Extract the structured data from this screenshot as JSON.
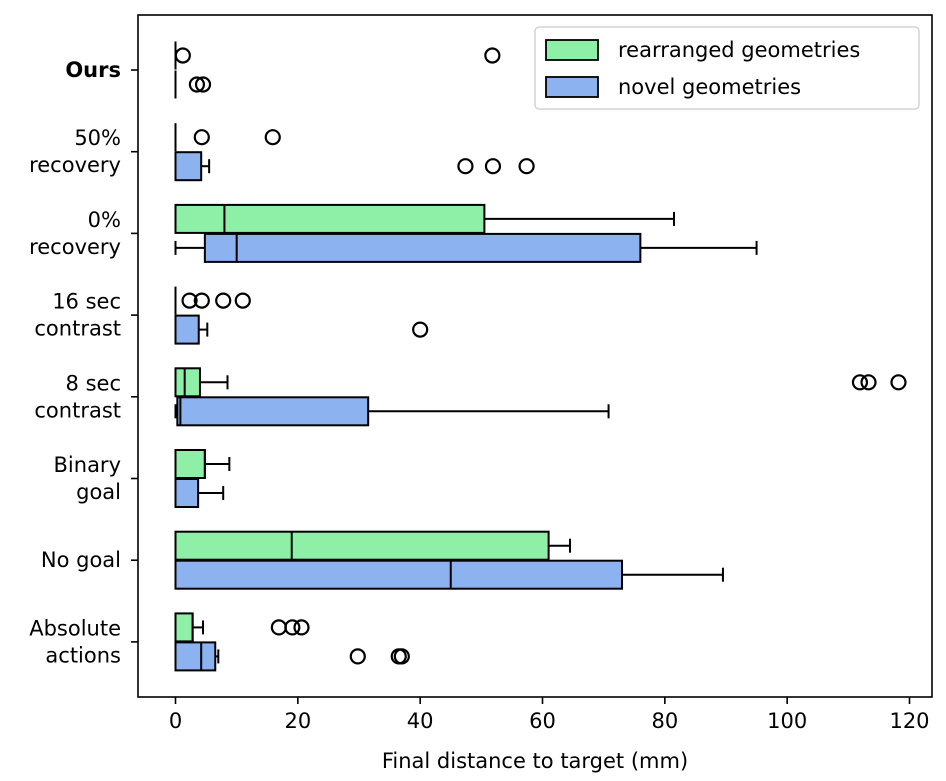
{
  "chart_data": {
    "type": "horizontal-boxplot",
    "xlabel": "Final distance to target (mm)",
    "xlim": [
      -6,
      124
    ],
    "xticks": [
      0,
      20,
      40,
      60,
      80,
      100,
      120
    ],
    "xtick_labels": [
      "0",
      "20",
      "40",
      "60",
      "80",
      "100",
      "120"
    ],
    "categories": [
      {
        "label": [
          "Ours"
        ],
        "bold": true
      },
      {
        "label": [
          "50%",
          "recovery"
        ],
        "bold": false
      },
      {
        "label": [
          "0%",
          "recovery"
        ],
        "bold": false
      },
      {
        "label": [
          "16 sec",
          "contrast"
        ],
        "bold": false
      },
      {
        "label": [
          "8 sec",
          "contrast"
        ],
        "bold": false
      },
      {
        "label": [
          "Binary",
          "goal"
        ],
        "bold": false
      },
      {
        "label": [
          "No goal"
        ],
        "bold": false
      },
      {
        "label": [
          "Absolute",
          "actions"
        ],
        "bold": false
      }
    ],
    "series": [
      {
        "name": "rearranged geometries",
        "color": "#8ef0a6",
        "boxes": [
          {
            "q1": 0,
            "median": 0,
            "q3": 0,
            "whislo": 0,
            "whishi": 0,
            "fliers": [
              1.2,
              51.8
            ]
          },
          {
            "q1": 0,
            "median": 0,
            "q3": 0,
            "whislo": 0,
            "whishi": 0,
            "fliers": [
              4.3,
              15.9
            ]
          },
          {
            "q1": 0,
            "median": 8,
            "q3": 50.5,
            "whislo": 0,
            "whishi": 81.5,
            "fliers": []
          },
          {
            "q1": 0,
            "median": 0,
            "q3": 0,
            "whislo": 0,
            "whishi": 0,
            "fliers": [
              2.3,
              4.3,
              7.8,
              11.0
            ]
          },
          {
            "q1": 0,
            "median": 1.5,
            "q3": 4,
            "whislo": 0,
            "whishi": 8.5,
            "fliers": [
              111.9,
              113.3,
              118.2
            ]
          },
          {
            "q1": 0,
            "median": 4.8,
            "q3": 4.8,
            "whislo": 0,
            "whishi": 8.8,
            "fliers": []
          },
          {
            "q1": 0,
            "median": 19,
            "q3": 61,
            "whislo": 0,
            "whishi": 64.5,
            "fliers": []
          },
          {
            "q1": 0,
            "median": 2.8,
            "q3": 2.8,
            "whislo": 0,
            "whishi": 4.5,
            "fliers": [
              16.9,
              19.1,
              20.6
            ]
          }
        ]
      },
      {
        "name": "novel geometries",
        "color": "#8cb3f0",
        "boxes": [
          {
            "q1": 0,
            "median": 0,
            "q3": 0,
            "whislo": 0,
            "whishi": 0,
            "fliers": [
              3.5,
              4.5
            ]
          },
          {
            "q1": 0,
            "median": 0,
            "q3": 4.2,
            "whislo": 0,
            "whishi": 5.5,
            "fliers": [
              47.4,
              51.9,
              57.4
            ]
          },
          {
            "q1": 4.8,
            "median": 10,
            "q3": 76,
            "whislo": 0,
            "whishi": 95,
            "fliers": []
          },
          {
            "q1": 0,
            "median": 0,
            "q3": 3.8,
            "whislo": 0,
            "whishi": 5.2,
            "fliers": [
              40.0
            ]
          },
          {
            "q1": 0.3,
            "median": 0.8,
            "q3": 31.5,
            "whislo": 0,
            "whishi": 70.8,
            "fliers": []
          },
          {
            "q1": 0,
            "median": 0,
            "q3": 3.7,
            "whislo": 0,
            "whishi": 7.8,
            "fliers": []
          },
          {
            "q1": 0,
            "median": 45,
            "q3": 73,
            "whislo": 0,
            "whishi": 89.5,
            "fliers": []
          },
          {
            "q1": 0,
            "median": 4.2,
            "q3": 6.5,
            "whislo": 0,
            "whishi": 7,
            "fliers": [
              29.8,
              36.5,
              37.0
            ]
          }
        ]
      }
    ],
    "legend": {
      "location": "top-right",
      "entries": [
        "rearranged geometries",
        "novel geometries"
      ]
    }
  }
}
